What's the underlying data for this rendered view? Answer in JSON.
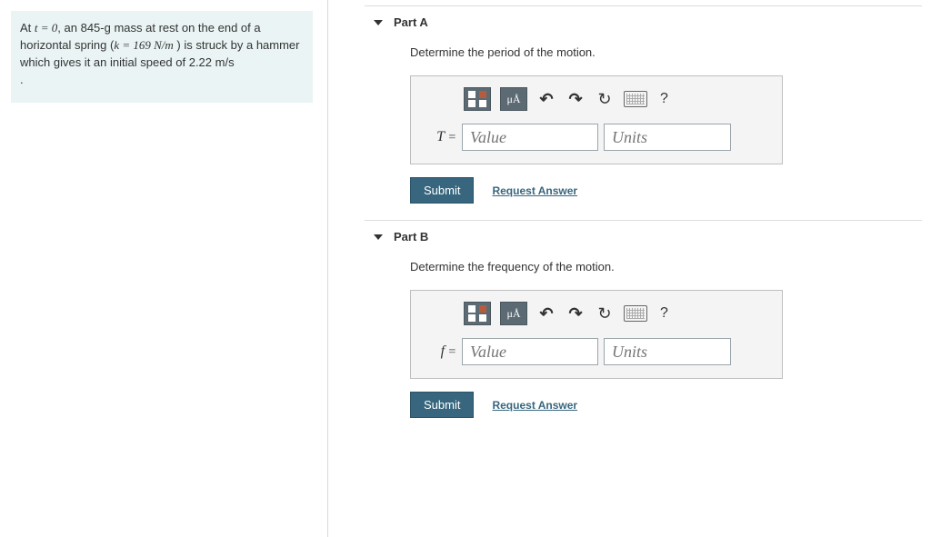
{
  "problem": {
    "prefix": "At ",
    "t_expr": "t = 0",
    "mid1": ", an 845-g mass at rest on the end of a horizontal spring (",
    "k_expr": "k = 169  N/m",
    "mid2": " ) is struck by a hammer which gives it an initial speed of 2.22  m/s",
    "end": "."
  },
  "toolbar": {
    "unit_btn": "μÅ",
    "help": "?"
  },
  "partA": {
    "title": "Part A",
    "instruction": "Determine the period of the motion.",
    "variable": "T",
    "equals": " =",
    "value_placeholder": "Value",
    "units_placeholder": "Units",
    "submit": "Submit",
    "request": "Request Answer"
  },
  "partB": {
    "title": "Part B",
    "instruction": "Determine the frequency of the motion.",
    "variable": "f",
    "equals": " =",
    "value_placeholder": "Value",
    "units_placeholder": "Units",
    "submit": "Submit",
    "request": "Request Answer"
  }
}
